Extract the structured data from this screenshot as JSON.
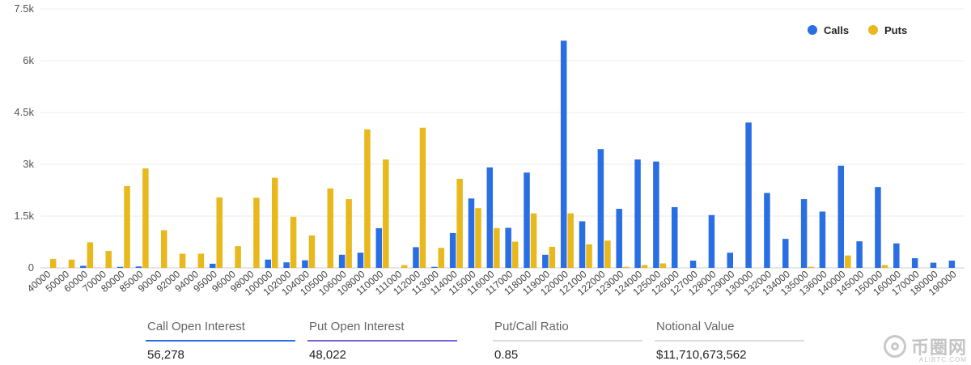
{
  "chart_data": {
    "type": "bar",
    "categories": [
      "40000",
      "50000",
      "60000",
      "70000",
      "80000",
      "85000",
      "90000",
      "92000",
      "94000",
      "95000",
      "96000",
      "98000",
      "100000",
      "102000",
      "104000",
      "105000",
      "106000",
      "108000",
      "110000",
      "111000",
      "112000",
      "113000",
      "114000",
      "115000",
      "116000",
      "117000",
      "118000",
      "119000",
      "120000",
      "121000",
      "122000",
      "123000",
      "124000",
      "125000",
      "126000",
      "127000",
      "128000",
      "129000",
      "130000",
      "132000",
      "134000",
      "135000",
      "136000",
      "140000",
      "145000",
      "150000",
      "160000",
      "170000",
      "180000",
      "190000"
    ],
    "series": [
      {
        "name": "Calls",
        "color": "#2a6ee4",
        "values": [
          0,
          0,
          60,
          0,
          30,
          40,
          0,
          0,
          0,
          120,
          0,
          0,
          240,
          160,
          220,
          0,
          380,
          440,
          1150,
          0,
          600,
          30,
          1010,
          2010,
          2910,
          1160,
          2760,
          380,
          6580,
          1350,
          3440,
          1710,
          3140,
          3080,
          1760,
          210,
          1530,
          440,
          4210,
          2170,
          840,
          1990,
          1630,
          2960,
          770,
          2340,
          710,
          280,
          150,
          210
        ]
      },
      {
        "name": "Puts",
        "color": "#e8b81c",
        "values": [
          260,
          240,
          740,
          490,
          2370,
          2880,
          1090,
          410,
          410,
          2040,
          630,
          2030,
          2610,
          1480,
          940,
          2300,
          1990,
          4010,
          3140,
          80,
          4060,
          580,
          2580,
          1730,
          1150,
          760,
          1580,
          610,
          1580,
          680,
          790,
          30,
          80,
          130,
          0,
          0,
          0,
          0,
          0,
          0,
          0,
          30,
          0,
          360,
          0,
          80,
          0,
          0,
          0,
          0
        ]
      }
    ],
    "y_ticks": [
      "0",
      "1.5k",
      "3k",
      "4.5k",
      "6k",
      "7.5k"
    ],
    "ylim": [
      0,
      7500
    ],
    "grid": true,
    "legend_position": "top-right"
  },
  "stats": [
    {
      "label": "Call Open Interest",
      "value": "56,278",
      "color": "#2a6ee4"
    },
    {
      "label": "Put Open Interest",
      "value": "48,022",
      "color": "#7a5fd6"
    },
    {
      "label": "Put/Call Ratio",
      "value": "0.85",
      "color": "#dddddd"
    },
    {
      "label": "Notional Value",
      "value": "$11,710,673,562",
      "color": "#dddddd"
    }
  ],
  "watermark": {
    "text": "币圈网",
    "sub": "ALIBTC.COM"
  }
}
